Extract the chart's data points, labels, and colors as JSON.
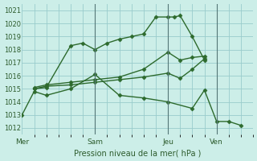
{
  "xlabel": "Pression niveau de la mer( hPa )",
  "bg_color": "#cceee8",
  "grid_color": "#99cccc",
  "line_color": "#2d6a2d",
  "vline_color": "#557777",
  "ylim": [
    1011.5,
    1021.5
  ],
  "yticks": [
    1012,
    1013,
    1014,
    1015,
    1016,
    1017,
    1018,
    1019,
    1020,
    1021
  ],
  "xtick_labels": [
    "Mer",
    "Sam",
    "Jeu",
    "Ven"
  ],
  "xtick_positions": [
    0,
    3,
    6,
    8
  ],
  "vlines": [
    3,
    6,
    8
  ],
  "xlim": [
    0,
    9.5
  ],
  "series": [
    {
      "x": [
        0.5,
        1.0,
        2.0,
        2.5,
        3.0,
        3.5,
        4.0,
        4.5,
        5.0,
        5.5,
        6.0,
        6.25,
        6.5,
        7.0,
        7.5
      ],
      "y": [
        1015.0,
        1015.1,
        1018.3,
        1018.5,
        1018.0,
        1018.5,
        1018.8,
        1019.0,
        1019.2,
        1020.5,
        1020.5,
        1020.5,
        1020.6,
        1019.0,
        1017.2
      ]
    },
    {
      "x": [
        0.5,
        1.0,
        2.0,
        3.0,
        4.0,
        5.0,
        6.0,
        6.5,
        7.0,
        7.5
      ],
      "y": [
        1015.1,
        1015.3,
        1015.5,
        1015.7,
        1015.9,
        1016.5,
        1017.8,
        1017.2,
        1017.4,
        1017.5
      ]
    },
    {
      "x": [
        0.5,
        1.0,
        2.0,
        3.0,
        4.0,
        5.0,
        6.0,
        6.5,
        7.0,
        7.5
      ],
      "y": [
        1015.0,
        1015.2,
        1015.3,
        1015.5,
        1015.7,
        1015.9,
        1016.2,
        1015.8,
        1016.5,
        1017.3
      ]
    },
    {
      "x": [
        0.0,
        0.5,
        1.0,
        2.0,
        3.0,
        4.0,
        5.0,
        6.0,
        7.0,
        7.5,
        8.0,
        8.5,
        9.0
      ],
      "y": [
        1013.0,
        1014.8,
        1014.5,
        1015.0,
        1016.1,
        1014.5,
        1014.3,
        1014.0,
        1013.5,
        1014.9,
        1012.5,
        1012.5,
        1012.2
      ]
    }
  ]
}
